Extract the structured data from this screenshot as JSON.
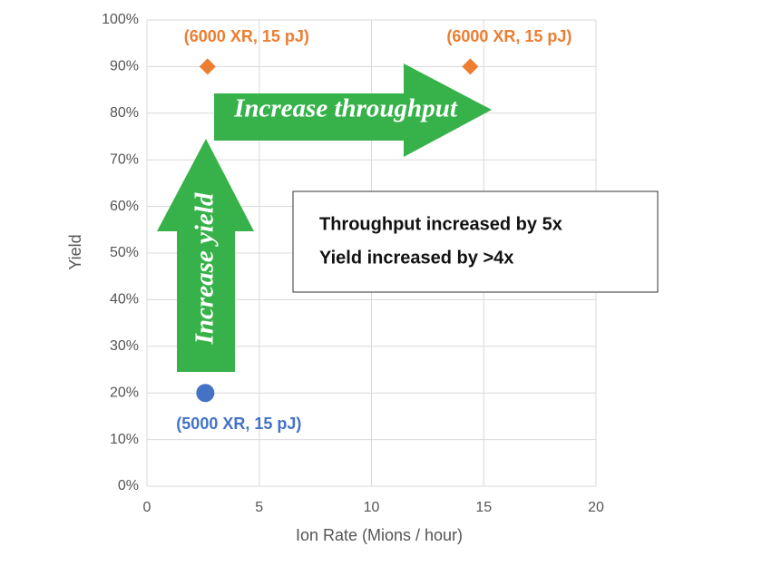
{
  "chart_data": {
    "type": "scatter",
    "x_label": "Ion Rate (Mions / hour)",
    "y_label": "Yield",
    "xlim": [
      0,
      20
    ],
    "xticks": [
      0,
      5,
      10,
      15,
      20
    ],
    "ylim": [
      0,
      100
    ],
    "yticks": [
      {
        "value": 0,
        "label": "0%"
      },
      {
        "value": 10,
        "label": "10%"
      },
      {
        "value": 20,
        "label": "20%"
      },
      {
        "value": 30,
        "label": "30%"
      },
      {
        "value": 40,
        "label": "40%"
      },
      {
        "value": 50,
        "label": "50%"
      },
      {
        "value": 60,
        "label": "60%"
      },
      {
        "value": 70,
        "label": "70%"
      },
      {
        "value": 80,
        "label": "80%"
      },
      {
        "value": 90,
        "label": "90%"
      },
      {
        "value": 100,
        "label": "100%"
      }
    ],
    "grid": true,
    "series": [
      {
        "color": "#4472c4",
        "marker": "circle",
        "label_position": "below",
        "x": [
          2.6
        ],
        "values": [
          20
        ],
        "point_labels": [
          "(5000 XR, 15 pJ)"
        ]
      },
      {
        "color": "#ed7d31",
        "marker": "diamond",
        "label_position": "above",
        "x": [
          2.7,
          14.4
        ],
        "values": [
          90,
          90
        ],
        "point_labels": [
          "(6000 XR, 15 pJ)",
          "(6000 XR, 15 pJ)"
        ]
      }
    ],
    "arrows": {
      "horizontal": "Increase throughput",
      "vertical": "Increase yield"
    },
    "text_box": [
      "Throughput increased by 5x",
      "Yield increased by >4x"
    ]
  }
}
